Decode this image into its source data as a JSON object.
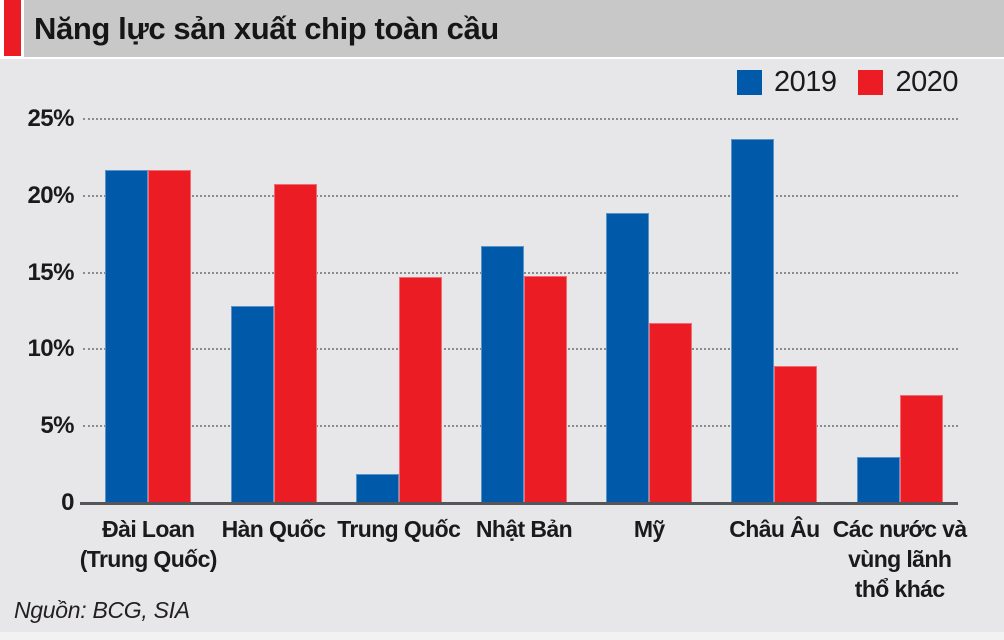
{
  "title": "Năng lực sản xuất chip toàn cầu",
  "source": "Nguồn: BCG, SIA",
  "legend": [
    {
      "label": "2019",
      "color": "#005aa9"
    },
    {
      "label": "2020",
      "color": "#ec1c24"
    }
  ],
  "colors": {
    "bar_blue": "#005aa9",
    "bar_red": "#ec1c24",
    "title_bar_bg": "#c8c8c9",
    "title_accent": "#ec1c24",
    "chart_bg": "#e7e7e9",
    "gridline": "#8a8b8e",
    "axis_line": "#55565a",
    "text": "#1a1a1a"
  },
  "chart_data": {
    "type": "bar",
    "title": "Năng lực sản xuất chip toàn cầu",
    "categories": [
      "Đài Loan\n(Trung Quốc)",
      "Hàn Quốc",
      "Trung Quốc",
      "Nhật Bản",
      "Mỹ",
      "Châu Âu",
      "Các nước và\nvùng lãnh\nthổ khác"
    ],
    "series": [
      {
        "name": "2019",
        "color": "#005aa9",
        "values": [
          21.7,
          12.8,
          1.9,
          16.7,
          18.9,
          23.7,
          3.0
        ]
      },
      {
        "name": "2020",
        "color": "#ec1c24",
        "values": [
          21.7,
          20.8,
          14.7,
          14.8,
          11.7,
          8.9,
          7.0
        ]
      }
    ],
    "unit": "%",
    "xlabel": "",
    "ylabel": "",
    "ylim": [
      0,
      25
    ],
    "yticks": [
      25,
      20,
      15,
      10,
      5,
      0
    ],
    "ytick_labels": [
      "25%",
      "20%",
      "15%",
      "10%",
      "5%",
      "0"
    ],
    "grid": "horizontal-dotted",
    "legend_position": "top-right"
  }
}
